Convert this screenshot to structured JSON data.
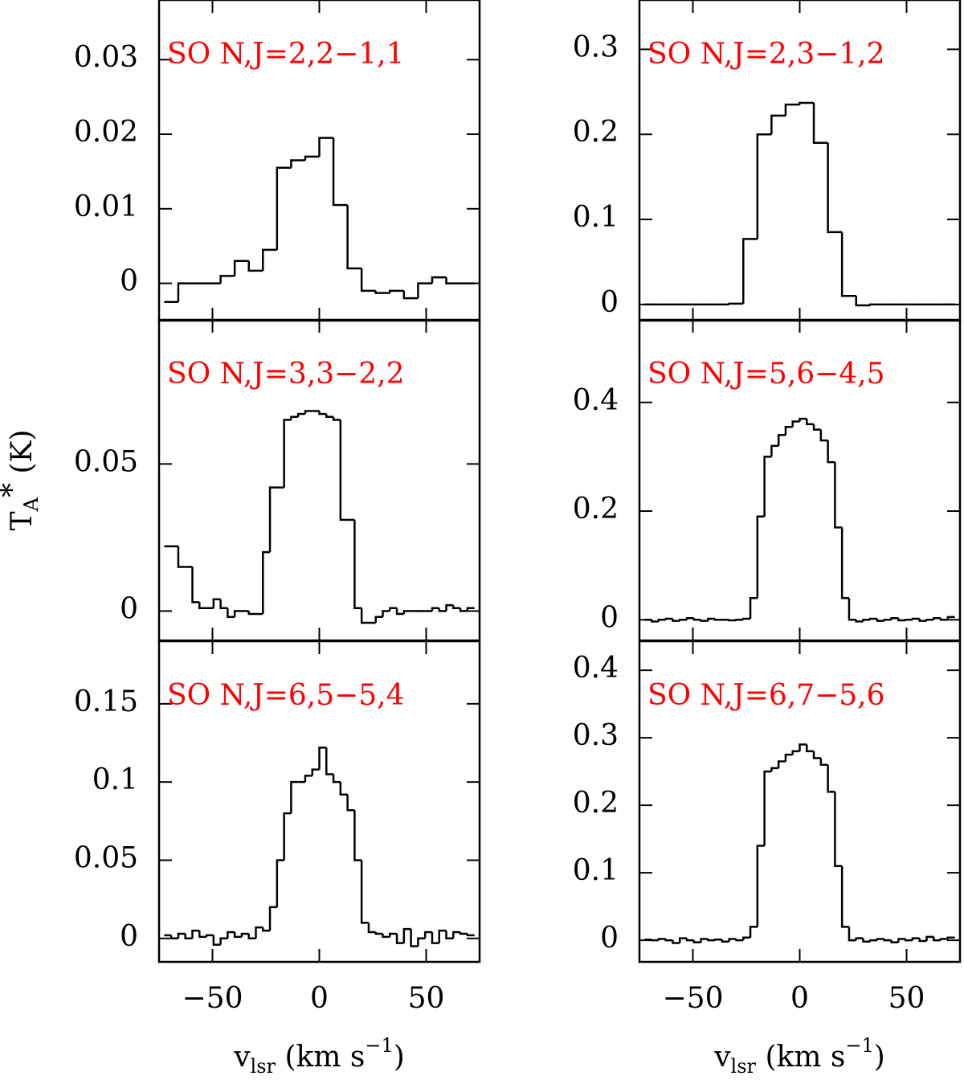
{
  "chart_data": [
    {
      "type": "histogram",
      "histtype": "step",
      "color": "#000000",
      "label": "SO N,J=2,2−1,1",
      "label_color": "#ff0000",
      "bins": [
        -72.6,
        -66,
        -59.4,
        -52.8,
        -46.2,
        -39.6,
        -33,
        -26.4,
        -19.8,
        -13.2,
        -6.6,
        0,
        6.6,
        13.2,
        19.8,
        26.4,
        33,
        39.6,
        46.2,
        52.8,
        59.4,
        66,
        72.6
      ],
      "values": [
        -0.0025,
        0.0,
        0.0,
        0.0,
        0.001,
        0.003,
        0.0017,
        0.0045,
        0.0155,
        0.0165,
        0.017,
        0.0195,
        0.0105,
        0.002,
        -0.001,
        -0.0013,
        -0.001,
        -0.002,
        0.0,
        0.0008,
        0.0,
        0.0
      ],
      "xlim": [
        -75,
        75
      ],
      "xticks": [
        -50,
        0,
        50
      ],
      "ylim": [
        -0.005,
        0.038
      ],
      "yticks": [
        0,
        0.01,
        0.02,
        0.03
      ]
    },
    {
      "type": "histogram",
      "histtype": "step",
      "color": "#000000",
      "label": "SO N,J=2,3−1,2",
      "label_color": "#ff0000",
      "bins": [
        -72.6,
        -66,
        -59.4,
        -52.8,
        -46.2,
        -39.6,
        -33,
        -26.4,
        -19.8,
        -13.2,
        -6.6,
        0,
        6.6,
        13.2,
        19.8,
        26.4,
        33,
        39.6,
        46.2,
        52.8,
        59.4,
        66,
        72.6
      ],
      "values": [
        0.0,
        0.0,
        0.0,
        0.0,
        0.0,
        0.0,
        0.001,
        0.077,
        0.2,
        0.222,
        0.235,
        0.237,
        0.19,
        0.085,
        0.01,
        -0.001,
        0.0,
        0.0,
        0.0,
        0.0,
        0.0,
        0.0
      ],
      "xlim": [
        -75,
        75
      ],
      "xticks": [
        -50,
        0,
        50
      ],
      "ylim": [
        -0.019,
        0.358
      ],
      "yticks": [
        0,
        0.1,
        0.2,
        0.3
      ]
    },
    {
      "type": "histogram",
      "histtype": "step",
      "color": "#000000",
      "label": "SO N,J=3,3−2,2",
      "label_color": "#ff0000",
      "ylabel": {
        "main": "T",
        "sub": "A",
        "sup": "*",
        "rest": " (K)"
      },
      "bins": [
        -72.6,
        -69.3,
        -66,
        -62.7,
        -59.4,
        -56.1,
        -52.8,
        -49.5,
        -46.2,
        -42.9,
        -39.6,
        -36.3,
        -33,
        -29.7,
        -26.4,
        -23.1,
        -19.8,
        -16.5,
        -13.2,
        -9.9,
        -6.6,
        -3.3,
        0,
        3.3,
        6.6,
        9.9,
        13.2,
        16.5,
        19.8,
        23.1,
        26.4,
        29.7,
        33,
        36.3,
        39.6,
        42.9,
        46.2,
        49.5,
        52.8,
        56.1,
        59.4,
        62.7,
        66,
        69.3,
        72.6
      ],
      "values": [
        0.022,
        0.022,
        0.015,
        0.015,
        0.003,
        0.001,
        0.001,
        0.004,
        0.001,
        -0.002,
        0.0,
        0.0,
        -0.001,
        -0.001,
        0.02,
        0.042,
        0.042,
        0.065,
        0.066,
        0.067,
        0.068,
        0.068,
        0.067,
        0.066,
        0.065,
        0.031,
        0.031,
        0.001,
        -0.004,
        -0.004,
        -0.002,
        0.0,
        0.001,
        -0.001,
        0.0,
        0.0,
        0.0,
        0.0,
        0.001,
        0.0,
        0.002,
        0.001,
        0.0,
        0.001
      ],
      "xlim": [
        -75,
        75
      ],
      "xticks": [
        -50,
        0,
        50
      ],
      "ylim": [
        -0.01,
        0.099
      ],
      "yticks": [
        0,
        0.05
      ]
    },
    {
      "type": "histogram",
      "histtype": "step",
      "color": "#000000",
      "label": "SO N,J=5,6−4,5",
      "label_color": "#ff0000",
      "bins": [
        -72.6,
        -69.3,
        -66,
        -62.7,
        -59.4,
        -56.1,
        -52.8,
        -49.5,
        -46.2,
        -42.9,
        -39.6,
        -36.3,
        -33,
        -29.7,
        -26.4,
        -23.1,
        -19.8,
        -16.5,
        -13.2,
        -9.9,
        -6.6,
        -3.3,
        0,
        3.3,
        6.6,
        9.9,
        13.2,
        16.5,
        19.8,
        23.1,
        26.4,
        29.7,
        33,
        36.3,
        39.6,
        42.9,
        46.2,
        49.5,
        52.8,
        56.1,
        59.4,
        62.7,
        66,
        69.3,
        72.6
      ],
      "values": [
        0.0,
        -0.003,
        0.0,
        0.002,
        -0.002,
        0.0,
        0.003,
        0.0,
        -0.002,
        0.002,
        0.0,
        0.0,
        -0.001,
        0.0,
        0.002,
        0.04,
        0.19,
        0.3,
        0.32,
        0.34,
        0.355,
        0.365,
        0.37,
        0.36,
        0.35,
        0.33,
        0.29,
        0.17,
        0.04,
        0.0,
        -0.003,
        0.0,
        0.002,
        -0.002,
        0.0,
        0.003,
        -0.001,
        0.0,
        0.002,
        -0.002,
        0.0,
        0.003,
        0.0,
        0.005
      ],
      "xlim": [
        -75,
        75
      ],
      "xticks": [
        -50,
        0,
        50
      ],
      "ylim": [
        -0.038,
        0.552
      ],
      "yticks": [
        0,
        0.2,
        0.4
      ]
    },
    {
      "type": "histogram",
      "histtype": "step",
      "color": "#000000",
      "label": "SO N,J=6,5−5,4",
      "label_color": "#ff0000",
      "xlabel": {
        "main": "v",
        "sub": "lsr",
        "rest": " (km s",
        "sup": "−1",
        "end": ")"
      },
      "bins": [
        -72.6,
        -69.3,
        -66,
        -62.7,
        -59.4,
        -56.1,
        -52.8,
        -49.5,
        -46.2,
        -42.9,
        -39.6,
        -36.3,
        -33,
        -29.7,
        -26.4,
        -23.1,
        -19.8,
        -16.5,
        -13.2,
        -9.9,
        -6.6,
        -3.3,
        0,
        3.3,
        6.6,
        9.9,
        13.2,
        16.5,
        19.8,
        23.1,
        26.4,
        29.7,
        33,
        36.3,
        39.6,
        42.9,
        46.2,
        49.5,
        52.8,
        56.1,
        59.4,
        62.7,
        66,
        69.3,
        72.6
      ],
      "values": [
        0.002,
        0.0,
        0.003,
        0.0,
        0.005,
        0.001,
        0.002,
        -0.004,
        0.0,
        0.004,
        0.001,
        0.003,
        0.0,
        0.007,
        0.005,
        0.02,
        0.05,
        0.08,
        0.1,
        0.1,
        0.104,
        0.108,
        0.122,
        0.105,
        0.1,
        0.092,
        0.082,
        0.05,
        0.01,
        0.004,
        0.003,
        0.001,
        0.003,
        -0.003,
        0.006,
        -0.005,
        0.0,
        0.004,
        -0.003,
        0.005,
        0.0,
        0.004,
        0.003,
        0.002
      ],
      "xlim": [
        -75,
        75
      ],
      "xticks": [
        {
          "value": -50,
          "label": "−50"
        },
        0,
        50
      ],
      "ylim": [
        -0.015,
        0.19
      ],
      "yticks": [
        0,
        0.05,
        0.1,
        0.15
      ]
    },
    {
      "type": "histogram",
      "histtype": "step",
      "color": "#000000",
      "label": "SO N,J=6,7−5,6",
      "label_color": "#ff0000",
      "xlabel": {
        "main": "v",
        "sub": "lsr",
        "rest": " (km s",
        "sup": "−1",
        "end": ")"
      },
      "bins": [
        -72.6,
        -69.3,
        -66,
        -62.7,
        -59.4,
        -56.1,
        -52.8,
        -49.5,
        -46.2,
        -42.9,
        -39.6,
        -36.3,
        -33,
        -29.7,
        -26.4,
        -23.1,
        -19.8,
        -16.5,
        -13.2,
        -9.9,
        -6.6,
        -3.3,
        0,
        3.3,
        6.6,
        9.9,
        13.2,
        16.5,
        19.8,
        23.1,
        26.4,
        29.7,
        33,
        36.3,
        39.6,
        42.9,
        46.2,
        49.5,
        52.8,
        56.1,
        59.4,
        62.7,
        66,
        69.3,
        72.6
      ],
      "values": [
        0.001,
        0.0,
        0.002,
        0.0,
        -0.004,
        0.003,
        0.0,
        -0.003,
        0.002,
        0.0,
        0.001,
        -0.002,
        0.002,
        0.0,
        0.004,
        0.02,
        0.14,
        0.25,
        0.255,
        0.265,
        0.275,
        0.28,
        0.29,
        0.28,
        0.27,
        0.26,
        0.22,
        0.11,
        0.02,
        0.0,
        0.003,
        -0.002,
        0.0,
        0.002,
        0.0,
        -0.003,
        0.002,
        0.0,
        0.003,
        -0.001,
        0.005,
        0.0,
        0.002,
        0.004
      ],
      "xlim": [
        -75,
        75
      ],
      "xticks": [
        {
          "value": -50,
          "label": "−50"
        },
        0,
        50
      ],
      "ylim": [
        -0.032,
        0.443
      ],
      "yticks": [
        0,
        0.1,
        0.2,
        0.3,
        0.4
      ]
    }
  ]
}
